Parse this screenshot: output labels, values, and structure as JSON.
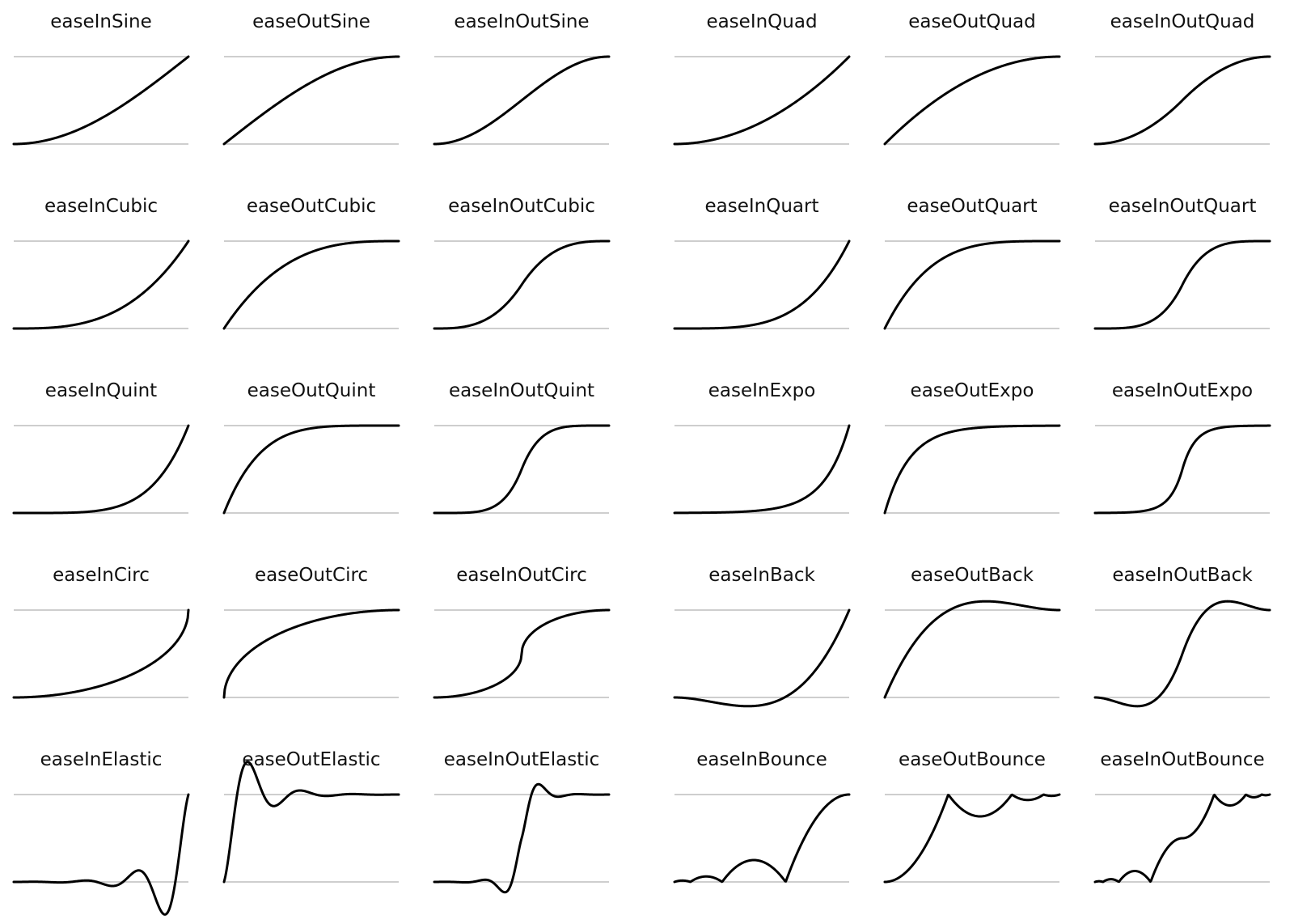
{
  "chart_data": {
    "type": "line",
    "grid": false,
    "legend": "none",
    "colors": {
      "curve": "#000000",
      "guide": "#bdbdbd",
      "text": "#111111",
      "background": "#ffffff"
    },
    "x_domain": [
      0,
      1
    ],
    "y_reference_lines": [
      0,
      1
    ],
    "panels": [
      {
        "title": "easeInSine",
        "easing": "easeInSine"
      },
      {
        "title": "easeOutSine",
        "easing": "easeOutSine"
      },
      {
        "title": "easeInOutSine",
        "easing": "easeInOutSine"
      },
      {
        "title": "easeInQuad",
        "easing": "easeInQuad"
      },
      {
        "title": "easeOutQuad",
        "easing": "easeOutQuad"
      },
      {
        "title": "easeInOutQuad",
        "easing": "easeInOutQuad"
      },
      {
        "title": "easeInCubic",
        "easing": "easeInCubic"
      },
      {
        "title": "easeOutCubic",
        "easing": "easeOutCubic"
      },
      {
        "title": "easeInOutCubic",
        "easing": "easeInOutCubic"
      },
      {
        "title": "easeInQuart",
        "easing": "easeInQuart"
      },
      {
        "title": "easeOutQuart",
        "easing": "easeOutQuart"
      },
      {
        "title": "easeInOutQuart",
        "easing": "easeInOutQuart"
      },
      {
        "title": "easeInQuint",
        "easing": "easeInQuint"
      },
      {
        "title": "easeOutQuint",
        "easing": "easeOutQuint"
      },
      {
        "title": "easeInOutQuint",
        "easing": "easeInOutQuint"
      },
      {
        "title": "easeInExpo",
        "easing": "easeInExpo"
      },
      {
        "title": "easeOutExpo",
        "easing": "easeOutExpo"
      },
      {
        "title": "easeInOutExpo",
        "easing": "easeInOutExpo"
      },
      {
        "title": "easeInCirc",
        "easing": "easeInCirc"
      },
      {
        "title": "easeOutCirc",
        "easing": "easeOutCirc"
      },
      {
        "title": "easeInOutCirc",
        "easing": "easeInOutCirc"
      },
      {
        "title": "easeInBack",
        "easing": "easeInBack"
      },
      {
        "title": "easeOutBack",
        "easing": "easeOutBack"
      },
      {
        "title": "easeInOutBack",
        "easing": "easeInOutBack"
      },
      {
        "title": "easeInElastic",
        "easing": "easeInElastic"
      },
      {
        "title": "easeOutElastic",
        "easing": "easeOutElastic"
      },
      {
        "title": "easeInOutElastic",
        "easing": "easeInOutElastic"
      },
      {
        "title": "easeInBounce",
        "easing": "easeInBounce"
      },
      {
        "title": "easeOutBounce",
        "easing": "easeOutBounce"
      },
      {
        "title": "easeInOutBounce",
        "easing": "easeInOutBounce"
      }
    ]
  }
}
